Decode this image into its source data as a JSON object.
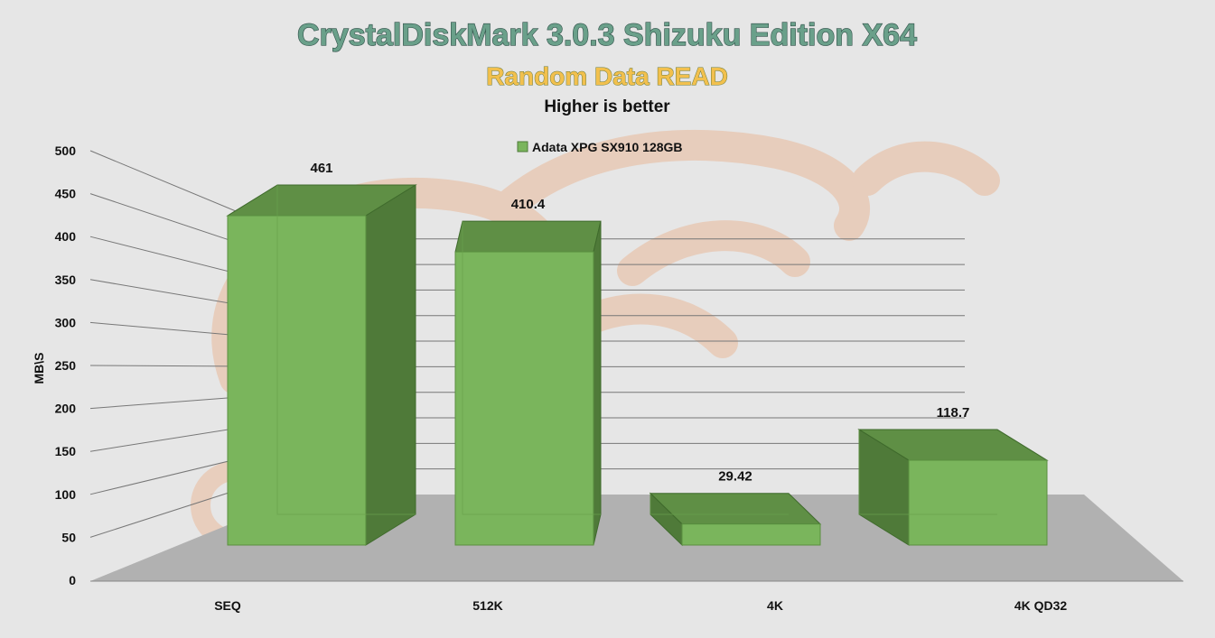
{
  "chart_data": {
    "type": "bar",
    "title": "CrystalDiskMark 3.0.3 Shizuku Edition X64",
    "subtitle": "Random Data READ",
    "note": "Higher is better",
    "ylabel": "MB\\S",
    "xlabel": "",
    "ylim": [
      0,
      500
    ],
    "yticks": [
      0,
      50,
      100,
      150,
      200,
      250,
      300,
      350,
      400,
      450,
      500
    ],
    "categories": [
      "SEQ",
      "512K",
      "4K",
      "4K QD32"
    ],
    "series": [
      {
        "name": "Adata XPG SX910 128GB",
        "values": [
          461,
          410.4,
          29.42,
          118.7
        ],
        "labels": [
          "461",
          "410.4",
          "29.42",
          "118.7"
        ]
      }
    ],
    "legend": "top-center",
    "grid": true,
    "colors": {
      "bar_front": "#7ab55c",
      "bar_side": "#4f7a39",
      "bar_top": "#5f8f45",
      "floor": "#b1b1b1",
      "background": "#e6e6e6",
      "watermark": "#e9b99a"
    }
  }
}
